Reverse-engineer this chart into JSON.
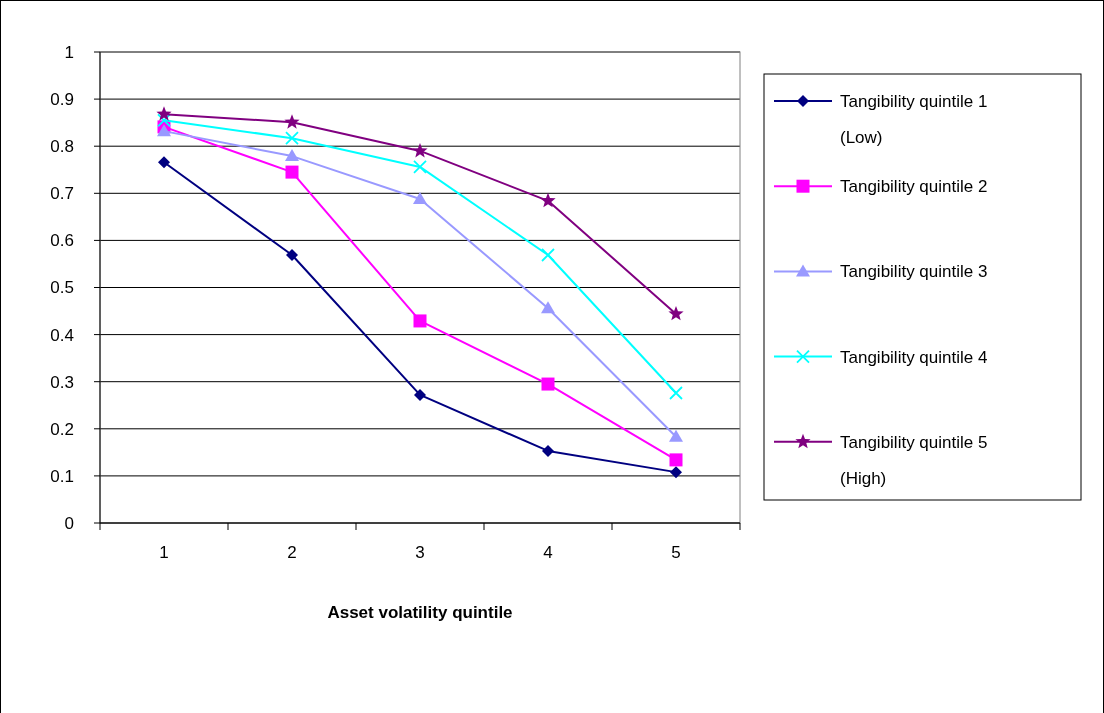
{
  "chart_data": {
    "type": "line",
    "xlabel": "Asset volatility quintile",
    "categories": [
      "1",
      "2",
      "3",
      "4",
      "5"
    ],
    "series": [
      {
        "name": "Tangibility quintile 1 (Low)",
        "color": "#000080",
        "marker": "diamond",
        "values": [
          0.766,
          0.569,
          0.272,
          0.153,
          0.108
        ]
      },
      {
        "name": "Tangibility quintile 2",
        "color": "#ff00ff",
        "marker": "square",
        "values": [
          0.841,
          0.745,
          0.429,
          0.295,
          0.134
        ]
      },
      {
        "name": "Tangibility quintile 3",
        "color": "#9999ff",
        "marker": "triangle",
        "values": [
          0.832,
          0.779,
          0.688,
          0.456,
          0.183
        ]
      },
      {
        "name": "Tangibility quintile 4",
        "color": "#00ffff",
        "marker": "cross",
        "values": [
          0.855,
          0.817,
          0.756,
          0.569,
          0.276
        ]
      },
      {
        "name": "Tangibility quintile 5 (High)",
        "color": "#800080",
        "marker": "star",
        "values": [
          0.868,
          0.851,
          0.79,
          0.684,
          0.444
        ]
      }
    ],
    "ylim": [
      0,
      1
    ],
    "yticks": [
      0,
      0.1,
      0.2,
      0.3,
      0.4,
      0.5,
      0.6,
      0.7,
      0.8,
      0.9,
      1
    ],
    "grid": "y",
    "legend": "right",
    "line_style": "solid"
  }
}
